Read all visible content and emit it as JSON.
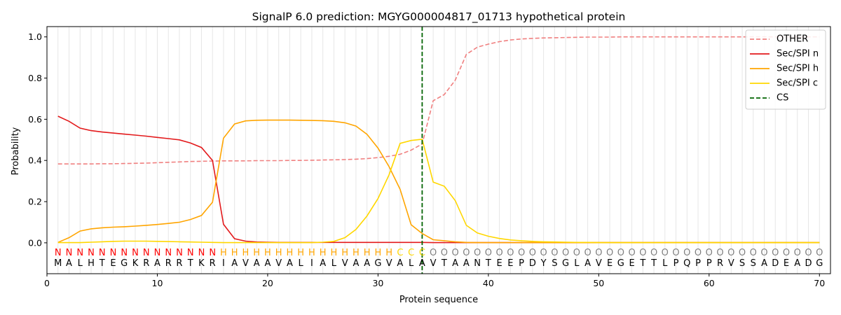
{
  "chart_data": {
    "type": "line",
    "title": "SignalP 6.0 prediction: MGYG000004817_01713 hypothetical protein",
    "xlabel": "Protein sequence",
    "ylabel": "Probability",
    "xlim": [
      0,
      71
    ],
    "ylim": [
      -0.15,
      1.05
    ],
    "xticks": [
      0,
      10,
      20,
      30,
      40,
      50,
      60,
      70
    ],
    "yticks": [
      0.0,
      0.2,
      0.4,
      0.6,
      0.8,
      1.0
    ],
    "xtick_labels": [
      "0",
      "10",
      "20",
      "30",
      "40",
      "50",
      "60",
      "70"
    ],
    "ytick_labels": [
      "0.0",
      "0.2",
      "0.4",
      "0.6",
      "0.8",
      "1.0"
    ],
    "grid": "vertical lines at every residue",
    "legend_position": "top-right",
    "sequence": [
      "M",
      "A",
      "L",
      "H",
      "T",
      "E",
      "G",
      "K",
      "R",
      "A",
      "R",
      "R",
      "T",
      "K",
      "R",
      "I",
      "A",
      "V",
      "A",
      "A",
      "V",
      "A",
      "L",
      "I",
      "A",
      "L",
      "V",
      "A",
      "A",
      "G",
      "V",
      "A",
      "L",
      "A",
      "V",
      "T",
      "A",
      "A",
      "N",
      "T",
      "E",
      "E",
      "P",
      "D",
      "Y",
      "S",
      "G",
      "L",
      "A",
      "V",
      "E",
      "G",
      "E",
      "T",
      "T",
      "L",
      "P",
      "Q",
      "P",
      "P",
      "R",
      "V",
      "S",
      "S",
      "A",
      "D",
      "E",
      "A",
      "D",
      "G"
    ],
    "labels": [
      "N",
      "N",
      "N",
      "N",
      "N",
      "N",
      "N",
      "N",
      "N",
      "N",
      "N",
      "N",
      "N",
      "N",
      "N",
      "H",
      "H",
      "H",
      "H",
      "H",
      "H",
      "H",
      "H",
      "H",
      "H",
      "H",
      "H",
      "H",
      "H",
      "H",
      "H",
      "C",
      "C",
      "C",
      "O",
      "O",
      "O",
      "O",
      "O",
      "O",
      "O",
      "O",
      "O",
      "O",
      "O",
      "O",
      "O",
      "O",
      "O",
      "O",
      "O",
      "O",
      "O",
      "O",
      "O",
      "O",
      "O",
      "O",
      "O",
      "O",
      "O",
      "O",
      "O",
      "O",
      "O",
      "O",
      "O",
      "O",
      "O",
      "O"
    ],
    "label_colors": {
      "N": "#ff0000",
      "H": "#ffa500",
      "C": "#ffd700",
      "O": "#808080"
    },
    "cs_position": 34,
    "series": [
      {
        "name": "OTHER",
        "color": "#f08080",
        "dash": true,
        "values": [
          0.383,
          0.383,
          0.383,
          0.383,
          0.384,
          0.384,
          0.385,
          0.386,
          0.387,
          0.389,
          0.391,
          0.393,
          0.395,
          0.396,
          0.397,
          0.398,
          0.398,
          0.398,
          0.399,
          0.399,
          0.399,
          0.4,
          0.4,
          0.401,
          0.402,
          0.403,
          0.404,
          0.406,
          0.409,
          0.414,
          0.42,
          0.43,
          0.45,
          0.48,
          0.69,
          0.72,
          0.79,
          0.915,
          0.95,
          0.965,
          0.977,
          0.985,
          0.99,
          0.993,
          0.995,
          0.996,
          0.997,
          0.998,
          0.999,
          0.999,
          0.999,
          1.0,
          1.0,
          1.0,
          1.0,
          1.0,
          1.0,
          1.0,
          1.0,
          1.0,
          1.0,
          1.0,
          1.0,
          1.0,
          1.0,
          1.0,
          1.0,
          1.0,
          1.0,
          1.0
        ]
      },
      {
        "name": "Sec/SPI n",
        "color": "#e31a1c",
        "dash": false,
        "values": [
          0.615,
          0.59,
          0.557,
          0.545,
          0.538,
          0.533,
          0.528,
          0.523,
          0.518,
          0.512,
          0.506,
          0.5,
          0.485,
          0.463,
          0.4,
          0.09,
          0.02,
          0.008,
          0.004,
          0.003,
          0.002,
          0.002,
          0.002,
          0.002,
          0.002,
          0.002,
          0.002,
          0.002,
          0.002,
          0.002,
          0.002,
          0.002,
          0.002,
          0.002,
          0.001,
          0.001,
          0.001,
          0.001,
          0.001,
          0.001,
          0.001,
          0.001,
          0.001,
          0.001,
          0.001,
          0.001,
          0.001,
          0.001,
          0.001,
          0.001,
          0.001,
          0.001,
          0.001,
          0.001,
          0.001,
          0.001,
          0.001,
          0.001,
          0.001,
          0.001,
          0.001,
          0.001,
          0.001,
          0.001,
          0.001,
          0.001,
          0.001,
          0.001,
          0.001,
          0.001
        ]
      },
      {
        "name": "Sec/SPI h",
        "color": "#ffa500",
        "dash": false,
        "values": [
          0.002,
          0.025,
          0.057,
          0.068,
          0.073,
          0.076,
          0.078,
          0.081,
          0.085,
          0.089,
          0.094,
          0.1,
          0.113,
          0.133,
          0.197,
          0.508,
          0.577,
          0.592,
          0.595,
          0.596,
          0.596,
          0.596,
          0.595,
          0.594,
          0.593,
          0.59,
          0.583,
          0.567,
          0.527,
          0.46,
          0.37,
          0.26,
          0.088,
          0.045,
          0.015,
          0.01,
          0.005,
          0.002,
          0.001,
          0.001,
          0.001,
          0.001,
          0.001,
          0.001,
          0.001,
          0.001,
          0.001,
          0.001,
          0.001,
          0.001,
          0.001,
          0.001,
          0.001,
          0.001,
          0.001,
          0.001,
          0.001,
          0.001,
          0.001,
          0.001,
          0.001,
          0.001,
          0.001,
          0.001,
          0.001,
          0.001,
          0.001,
          0.001,
          0.001,
          0.001
        ]
      },
      {
        "name": "Sec/SPI c",
        "color": "#ffd700",
        "dash": false,
        "values": [
          0.001,
          0.001,
          0.001,
          0.003,
          0.005,
          0.007,
          0.008,
          0.008,
          0.008,
          0.007,
          0.006,
          0.005,
          0.004,
          0.003,
          0.002,
          0.001,
          0.001,
          0.001,
          0.001,
          0.001,
          0.001,
          0.001,
          0.001,
          0.001,
          0.003,
          0.007,
          0.025,
          0.065,
          0.13,
          0.215,
          0.33,
          0.483,
          0.497,
          0.503,
          0.295,
          0.275,
          0.205,
          0.085,
          0.048,
          0.032,
          0.021,
          0.014,
          0.01,
          0.007,
          0.005,
          0.004,
          0.003,
          0.002,
          0.002,
          0.001,
          0.001,
          0.001,
          0.001,
          0.001,
          0.001,
          0.001,
          0.001,
          0.001,
          0.001,
          0.001,
          0.001,
          0.001,
          0.001,
          0.001,
          0.001,
          0.001,
          0.001,
          0.001,
          0.001,
          0.001
        ]
      }
    ],
    "legend": [
      {
        "label": "OTHER",
        "color": "#f08080",
        "dash": true
      },
      {
        "label": "Sec/SPI n",
        "color": "#e31a1c",
        "dash": false
      },
      {
        "label": "Sec/SPI h",
        "color": "#ffa500",
        "dash": false
      },
      {
        "label": "Sec/SPI c",
        "color": "#ffd700",
        "dash": false
      },
      {
        "label": "CS",
        "color": "#006400",
        "dash": true
      }
    ]
  }
}
